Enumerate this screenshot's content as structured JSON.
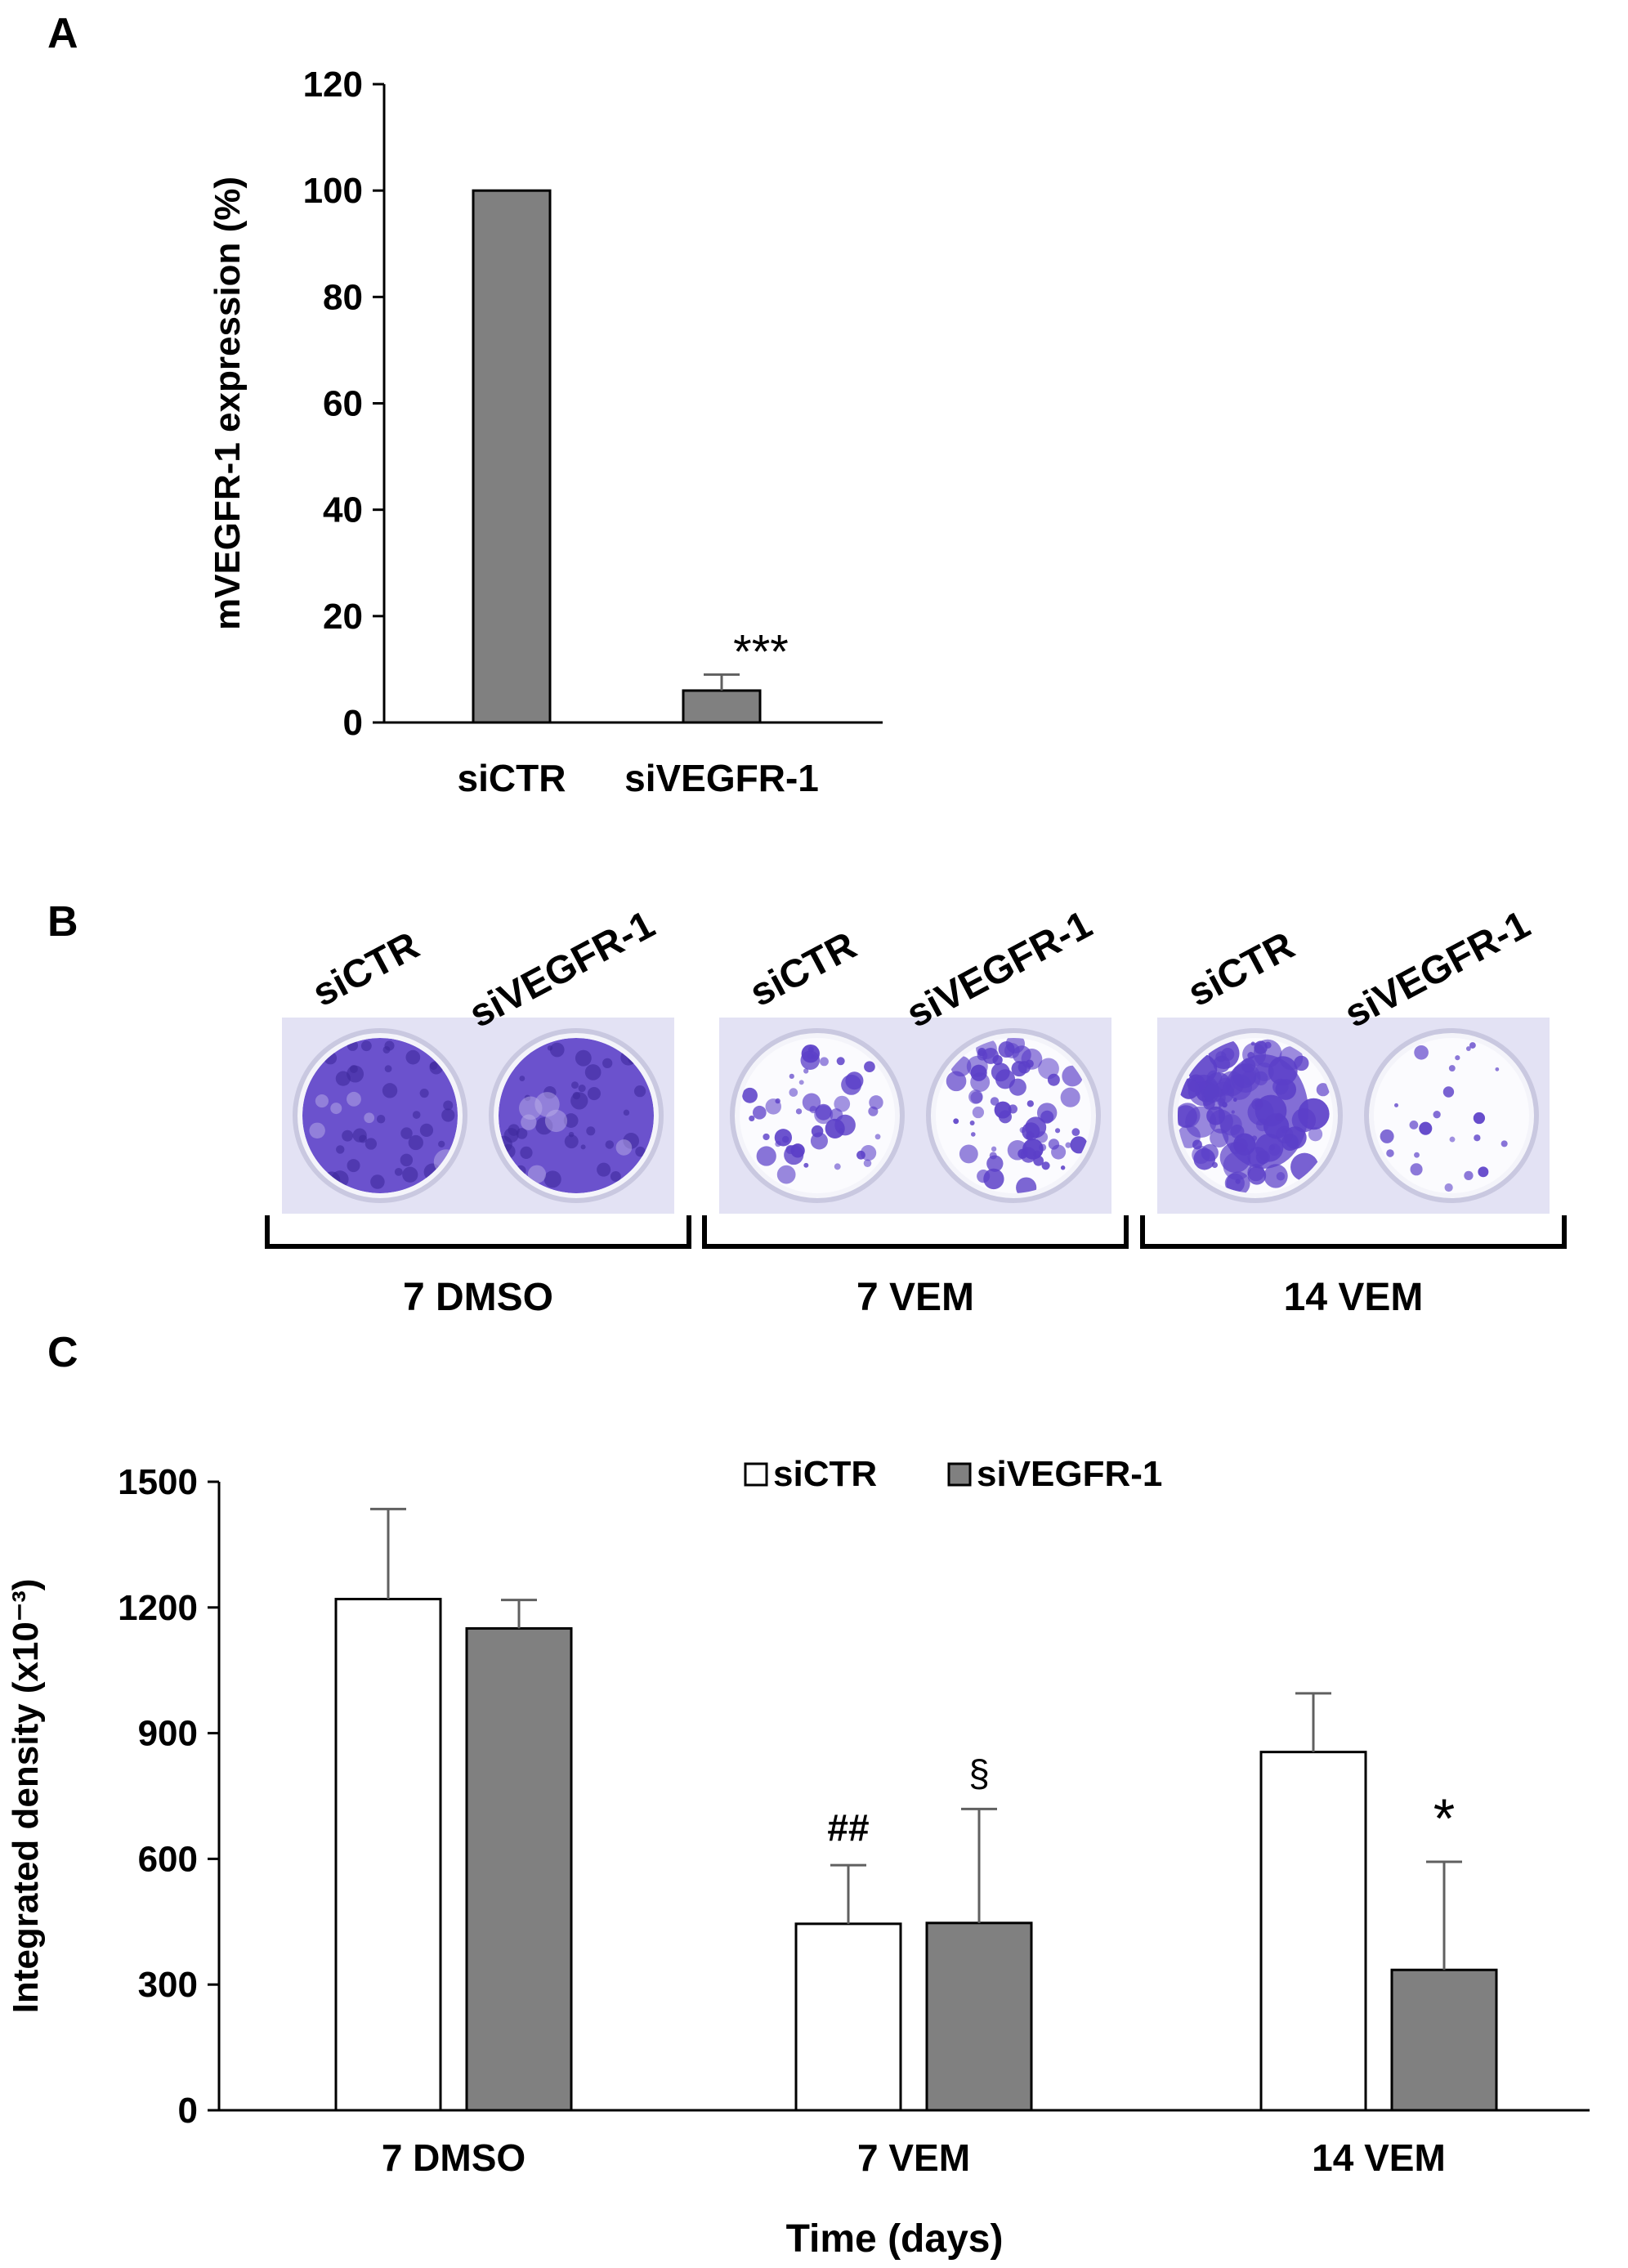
{
  "panels": {
    "a": {
      "letter": "A"
    },
    "b": {
      "letter": "B"
    },
    "c": {
      "letter": "C"
    }
  },
  "colors": {
    "bar_gray": "#808080",
    "bar_white": "#ffffff",
    "stroke": "#000000",
    "error_bar": "#606060",
    "crystal_violet": "#5b3fc8",
    "well_background": "#e3e2f4"
  },
  "chart_data": [
    {
      "type": "bar",
      "panel": "A",
      "ylabel": "mVEGFR-1 expression (%)",
      "xlabel": "",
      "ylim": [
        0,
        120
      ],
      "yticks": [
        0,
        20,
        40,
        60,
        80,
        100,
        120
      ],
      "grid": false,
      "categories": [
        "siCTR",
        "siVEGFR-1"
      ],
      "values": [
        100,
        6
      ],
      "errors": [
        0,
        3
      ],
      "annotations": [
        {
          "category": "siVEGFR-1",
          "text": "***"
        }
      ]
    },
    {
      "type": "bar",
      "panel": "C",
      "ylabel": "Integrated density (x10⁻³)",
      "xlabel": "Time (days)",
      "ylim": [
        0,
        1500
      ],
      "yticks": [
        0,
        300,
        600,
        900,
        1200,
        1500
      ],
      "grid": false,
      "legend_position": "top-center",
      "categories": [
        "7 DMSO",
        "7 VEM",
        "14 VEM"
      ],
      "series": [
        {
          "name": "siCTR",
          "values": [
            1220,
            445,
            855
          ],
          "errors": [
            215,
            140,
            140
          ]
        },
        {
          "name": "siVEGFR-1",
          "values": [
            1150,
            447,
            335
          ],
          "errors": [
            68,
            272,
            258
          ]
        }
      ],
      "annotations": [
        {
          "category": "7 VEM",
          "series": "siCTR",
          "text": "##"
        },
        {
          "category": "7 VEM",
          "series": "siVEGFR-1",
          "text": "§"
        },
        {
          "category": "14 VEM",
          "series": "siVEGFR-1",
          "text": "*"
        }
      ]
    }
  ],
  "wells_panel": {
    "groups": [
      {
        "label": "7 DMSO",
        "wells": [
          {
            "name": "siCTR",
            "stain_coverage": 0.95,
            "pattern": "confluent"
          },
          {
            "name": "siVEGFR-1",
            "stain_coverage": 0.9,
            "pattern": "confluent"
          }
        ]
      },
      {
        "label": "7 VEM",
        "wells": [
          {
            "name": "siCTR",
            "stain_coverage": 0.3,
            "pattern": "colonies"
          },
          {
            "name": "siVEGFR-1",
            "stain_coverage": 0.45,
            "pattern": "colonies"
          }
        ]
      },
      {
        "label": "14 VEM",
        "wells": [
          {
            "name": "siCTR",
            "stain_coverage": 0.65,
            "pattern": "dense-colonies"
          },
          {
            "name": "siVEGFR-1",
            "stain_coverage": 0.08,
            "pattern": "sparse"
          }
        ]
      }
    ]
  }
}
